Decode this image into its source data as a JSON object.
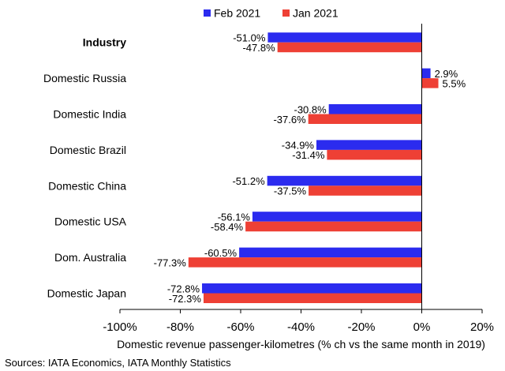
{
  "chart_data": {
    "type": "bar",
    "orientation": "horizontal",
    "categories": [
      "Industry",
      "Domestic Russia",
      "Domestic India",
      "Domestic Brazil",
      "Domestic China",
      "Domestic USA",
      "Dom. Australia",
      "Domestic Japan"
    ],
    "bold_categories": [
      "Industry"
    ],
    "series": [
      {
        "name": "Feb 2021",
        "color": "#2b2bef",
        "values": [
          -51.0,
          2.9,
          -30.8,
          -34.9,
          -51.2,
          -56.1,
          -60.5,
          -72.8
        ],
        "labels": [
          "-51.0%",
          "2.9%",
          "-30.8%",
          "-34.9%",
          "-51.2%",
          "-56.1%",
          "-60.5%",
          "-72.8%"
        ]
      },
      {
        "name": "Jan 2021",
        "color": "#ee4035",
        "values": [
          -47.8,
          5.5,
          -37.6,
          -31.4,
          -37.5,
          -58.4,
          -77.3,
          -72.3
        ],
        "labels": [
          "-47.8%",
          "5.5%",
          "-37.6%",
          "-31.4%",
          "-37.5%",
          "-58.4%",
          "-77.3%",
          "-72.3%"
        ]
      }
    ],
    "xlim": [
      -100,
      20
    ],
    "xticks": [
      -100,
      -80,
      -60,
      -40,
      -20,
      0,
      20
    ],
    "xtick_labels": [
      "-100%",
      "-80%",
      "-60%",
      "-40%",
      "-20%",
      "0%",
      "20%"
    ],
    "xlabel": "Domestic revenue passenger-kilometres (% ch vs the same month in 2019)",
    "legend_position": "top-center",
    "grid": false
  },
  "source": "Sources: IATA Economics, IATA Monthly Statistics"
}
